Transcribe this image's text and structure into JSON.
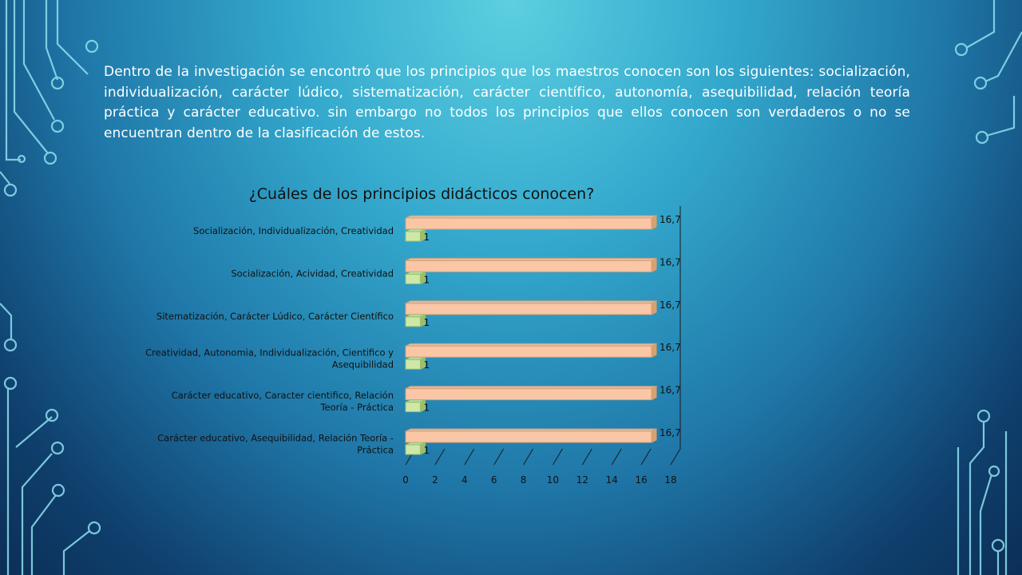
{
  "slide": {
    "paragraph": "Dentro de la investigación se encontró que los principios que los maestros conocen son los siguientes: socialización, individualización, carácter lúdico, sistematización, carácter científico, autonomía, asequibilidad, relación teoría práctica y carácter educativo. sin embargo no todos los principios que ellos conocen son verdaderos o no se encuentran dentro de la clasificación de estos."
  },
  "colors": {
    "series_1": "#f9c6a6",
    "series_2": "#cfe8a8",
    "text": "#111111"
  },
  "chart_data": {
    "type": "bar",
    "orientation": "horizontal",
    "title": "¿Cuáles de los principios didácticos conocen?",
    "categories": [
      [
        "Socialización, Individualización, Creatividad"
      ],
      [
        "Socialización, Acividad, Creatividad"
      ],
      [
        "Sitematización, Carácter Lúdico, Carácter Científico"
      ],
      [
        "Creatividad, Autonomia, Individualización, Cientifico y",
        "Asequibilidad"
      ],
      [
        "Carácter educativo, Caracter cientifico, Relación",
        "Teoría - Práctica"
      ],
      [
        "Carácter educativo, Asequibilidad, Relación Teoría -",
        "Práctica"
      ]
    ],
    "series": [
      {
        "values": [
          16.7,
          16.7,
          16.7,
          16.7,
          16.7,
          16.7
        ],
        "labels": [
          "16,7",
          "16,7",
          "16,7",
          "16,7",
          "16,7",
          "16,7"
        ]
      },
      {
        "values": [
          1,
          1,
          1,
          1,
          1,
          1
        ],
        "labels": [
          "1",
          "1",
          "1",
          "1",
          "1",
          "1"
        ]
      }
    ],
    "xlim": [
      0,
      18
    ],
    "xticks": [
      0,
      2,
      4,
      6,
      8,
      10,
      12,
      14,
      16,
      18
    ],
    "legend": "none",
    "grid": false,
    "style": "3d"
  }
}
